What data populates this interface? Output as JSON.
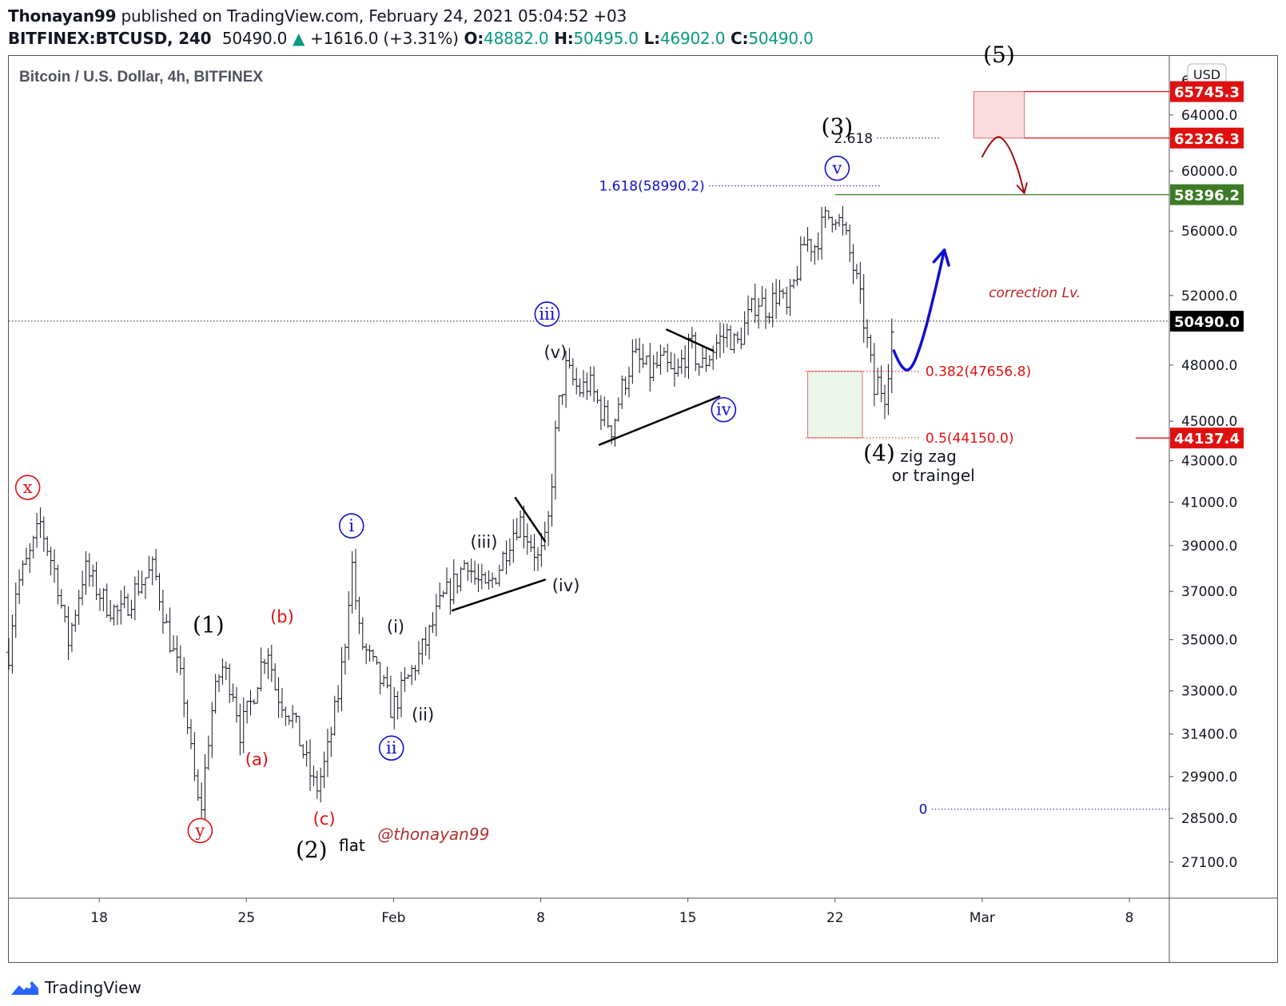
{
  "header": {
    "publisher": "Thonayan99",
    "published_text": "published on TradingView.com, February 24, 2021 05:04:52 +03",
    "symbol": "BITFINEX:BTCUSD, 240",
    "last": "50490.0",
    "change": "+1616.0 (+3.31%)",
    "o_label": "O:",
    "o_value": "48882.0",
    "h_label": "H:",
    "h_value": "50495.0",
    "l_label": "L:",
    "l_value": "46902.0",
    "c_label": "C:",
    "c_value": "50490.0"
  },
  "footer": {
    "brand": "TradingView"
  },
  "colors": {
    "up": "#089981",
    "blue": "#1010d0",
    "red": "#e01010",
    "green_label": "#3e7b27",
    "black_label": "#000000"
  },
  "chart_data": {
    "type": "ohlc",
    "title": "Bitcoin / U.S. Dollar, 4h, BITFINEX",
    "currency": "USD",
    "x_ticks": [
      "18",
      "25",
      "Feb",
      "8",
      "15",
      "22",
      "Mar",
      "8"
    ],
    "x_tick_days": [
      18,
      25,
      32,
      39,
      46,
      53,
      60,
      67
    ],
    "x_range_days": [
      13.7,
      68.9
    ],
    "y_ticks": [
      "27100.0",
      "28500.0",
      "29900.0",
      "31400.0",
      "33000.0",
      "35000.0",
      "37000.0",
      "39000.0",
      "41000.0",
      "43000.0",
      "45000.0",
      "48000.0",
      "52000.0",
      "56000.0",
      "60000.0",
      "64000.0"
    ],
    "y_top_partial": "6",
    "y_range": [
      26000,
      68500
    ],
    "y_scale": "log",
    "price_path": [
      [
        13.7,
        34500
      ],
      [
        14.0,
        37000
      ],
      [
        14.8,
        38800
      ],
      [
        15.2,
        40000
      ],
      [
        16.0,
        37500
      ],
      [
        16.5,
        34800
      ],
      [
        17.3,
        38000
      ],
      [
        18.3,
        36500
      ],
      [
        19.0,
        36000
      ],
      [
        19.8,
        37200
      ],
      [
        20.6,
        38000
      ],
      [
        21.2,
        35500
      ],
      [
        22.0,
        33000
      ],
      [
        22.4,
        30500
      ],
      [
        22.8,
        28500
      ],
      [
        23.3,
        32000
      ],
      [
        23.8,
        34000
      ],
      [
        24.4,
        33000
      ],
      [
        24.7,
        31500
      ],
      [
        25.2,
        32500
      ],
      [
        25.7,
        34000
      ],
      [
        26.0,
        34800
      ],
      [
        26.4,
        33000
      ],
      [
        27.2,
        32000
      ],
      [
        27.8,
        30500
      ],
      [
        28.3,
        29400
      ],
      [
        28.8,
        30500
      ],
      [
        29.4,
        33000
      ],
      [
        29.7,
        35000
      ],
      [
        30.0,
        38400
      ],
      [
        30.4,
        35000
      ],
      [
        31.0,
        34000
      ],
      [
        31.6,
        33000
      ],
      [
        31.9,
        32300
      ],
      [
        32.4,
        33000
      ],
      [
        32.9,
        33800
      ],
      [
        33.6,
        35000
      ],
      [
        34.3,
        36600
      ],
      [
        35.0,
        37500
      ],
      [
        35.5,
        38500
      ],
      [
        35.8,
        37600
      ],
      [
        36.4,
        37000
      ],
      [
        37.0,
        38000
      ],
      [
        37.6,
        39500
      ],
      [
        38.0,
        40200
      ],
      [
        38.6,
        39000
      ],
      [
        38.9,
        38300
      ],
      [
        39.3,
        39300
      ],
      [
        39.6,
        43000
      ],
      [
        39.8,
        45500
      ],
      [
        40.2,
        47800
      ],
      [
        40.8,
        46600
      ],
      [
        41.3,
        47000
      ],
      [
        41.9,
        45500
      ],
      [
        42.4,
        44600
      ],
      [
        42.8,
        46500
      ],
      [
        43.4,
        48500
      ],
      [
        44.2,
        47600
      ],
      [
        44.8,
        48200
      ],
      [
        45.4,
        47200
      ],
      [
        45.8,
        48500
      ],
      [
        46.2,
        49000
      ],
      [
        46.6,
        47800
      ],
      [
        47.0,
        48500
      ],
      [
        47.4,
        49300
      ],
      [
        47.9,
        49800
      ],
      [
        48.3,
        49000
      ],
      [
        48.8,
        50500
      ],
      [
        49.3,
        51800
      ],
      [
        49.8,
        51200
      ],
      [
        50.3,
        52300
      ],
      [
        50.7,
        51000
      ],
      [
        51.2,
        53500
      ],
      [
        51.6,
        55500
      ],
      [
        52.0,
        55000
      ],
      [
        52.5,
        56700
      ],
      [
        53.0,
        57300
      ],
      [
        53.5,
        55600
      ],
      [
        54.0,
        53000
      ],
      [
        54.3,
        51000
      ],
      [
        54.7,
        48000
      ],
      [
        54.9,
        46200
      ],
      [
        55.1,
        47500
      ],
      [
        55.3,
        46000
      ],
      [
        55.5,
        47600
      ],
      [
        55.7,
        49800
      ]
    ],
    "horizontal_lines": [
      {
        "name": "fib-1618",
        "label": "1.618(58990.2)",
        "price": 58990.2,
        "color": "#1010d0",
        "style": "dotted",
        "x_from": 47.0,
        "x_to": 55.2
      },
      {
        "name": "fib-2618",
        "label": "2.618",
        "price": 62326.3,
        "color": "#131722",
        "style": "dotted",
        "x_from": 55.0,
        "x_to": 58.0
      },
      {
        "name": "fib-0382",
        "label": "0.382(47656.8)",
        "price": 47656.8,
        "color": "#e01010",
        "style": "dotted",
        "x_from": 51.6,
        "x_to": 57.0
      },
      {
        "name": "fib-05",
        "label": "0.5(44150.0)",
        "price": 44150.0,
        "color": "#e01010",
        "style": "dotted",
        "x_from": 51.6,
        "x_to": 57.0
      },
      {
        "name": "fib-0",
        "label": "0",
        "price": 28800,
        "color": "#1010d0",
        "style": "dotted",
        "x_from": 57.6,
        "x_to": 68.9
      },
      {
        "name": "last-price",
        "label": "",
        "price": 50490.0,
        "color": "#131722",
        "style": "dotted",
        "x_from": 13.7,
        "x_to": 68.9
      },
      {
        "name": "level-65745",
        "label": "",
        "price": 65745.3,
        "color": "#e01010",
        "style": "solid",
        "x_from": 62.0,
        "x_to": 68.9
      },
      {
        "name": "level-62326",
        "label": "",
        "price": 62326.3,
        "color": "#e01010",
        "style": "solid",
        "x_from": 62.0,
        "x_to": 68.9
      },
      {
        "name": "level-58396",
        "label": "",
        "price": 58396.2,
        "color": "#3e7b27",
        "style": "solid",
        "x_from": 53.0,
        "x_to": 68.9
      },
      {
        "name": "level-44137",
        "label": "",
        "price": 44137.4,
        "color": "#e01010",
        "style": "solid",
        "x_from": 67.3,
        "x_to": 68.9
      }
    ],
    "price_labels": [
      {
        "text": "65745.3",
        "price": 65745.3,
        "bg": "#e01010",
        "fg": "#ffffff"
      },
      {
        "text": "62326.3",
        "price": 62326.3,
        "bg": "#e01010",
        "fg": "#ffffff"
      },
      {
        "text": "58396.2",
        "price": 58396.2,
        "bg": "#3e7b27",
        "fg": "#ffffff"
      },
      {
        "text": "50490.0",
        "price": 50490.0,
        "bg": "#000000",
        "fg": "#ffffff"
      },
      {
        "text": "44137.4",
        "price": 44137.4,
        "bg": "#e01010",
        "fg": "#ffffff"
      }
    ],
    "boxes": [
      {
        "name": "target-box-5",
        "x0": 59.6,
        "x1": 62.0,
        "p0": 65745.3,
        "p1": 62326.3,
        "fill": "rgba(240,128,128,0.28)",
        "stroke": "#e07070"
      },
      {
        "name": "support-box-4",
        "x0": 51.7,
        "x1": 54.3,
        "p0": 47656.8,
        "p1": 44150.0,
        "fill": "rgba(120,200,120,0.15)",
        "stroke": "#e07070"
      }
    ],
    "trendlines": [
      {
        "name": "triangle-iv-upper",
        "x0": 37.8,
        "y0": 41200,
        "x1": 39.2,
        "y1": 39200,
        "color": "#000",
        "width": 2.5
      },
      {
        "name": "triangle-iv-lower",
        "x0": 34.8,
        "y0": 36200,
        "x1": 39.2,
        "y1": 37500,
        "color": "#000",
        "width": 2.5
      },
      {
        "name": "triangle-iv-big-upper",
        "x0": 45.0,
        "y0": 50000,
        "x1": 47.2,
        "y1": 48800,
        "color": "#000",
        "width": 2.5
      },
      {
        "name": "triangle-iv-big-lower",
        "x0": 41.8,
        "y0": 43800,
        "x1": 47.5,
        "y1": 46300,
        "color": "#000",
        "width": 2.5
      }
    ],
    "annotations": [
      {
        "text": "(1)",
        "x": 23.2,
        "y": 35300,
        "color": "#000",
        "size": 28
      },
      {
        "text": "(2)",
        "x": 28.1,
        "y": 27250,
        "color": "#000",
        "size": 28
      },
      {
        "text": "flat",
        "x": 29.4,
        "y": 27450,
        "color": "#000",
        "size": 20,
        "anchor": "start"
      },
      {
        "text": "(3)",
        "x": 53.1,
        "y": 62600,
        "color": "#000",
        "size": 28
      },
      {
        "text": "(4)",
        "x": 55.1,
        "y": 43000,
        "color": "#000",
        "size": 28
      },
      {
        "text": "(5)",
        "x": 60.8,
        "y": 68000,
        "color": "#000",
        "size": 28
      },
      {
        "text": "zig zag",
        "x": 56.1,
        "y": 42950,
        "color": "#131722",
        "size": 20,
        "anchor": "start"
      },
      {
        "text": "or traingel",
        "x": 55.7,
        "y": 42000,
        "color": "#131722",
        "size": 20,
        "anchor": "start"
      },
      {
        "text": "(a)",
        "x": 25.5,
        "y": 30300,
        "color": "#e01010",
        "size": 21
      },
      {
        "text": "(b)",
        "x": 26.7,
        "y": 35700,
        "color": "#e01010",
        "size": 21
      },
      {
        "text": "(c)",
        "x": 28.7,
        "y": 28300,
        "color": "#e01010",
        "size": 21
      },
      {
        "text": "(i)",
        "x": 32.1,
        "y": 35300,
        "color": "#131722",
        "size": 21
      },
      {
        "text": "(ii)",
        "x": 33.4,
        "y": 31900,
        "color": "#131722",
        "size": 21
      },
      {
        "text": "(iii)",
        "x": 36.3,
        "y": 38900,
        "color": "#131722",
        "size": 21
      },
      {
        "text": "(iv)",
        "x": 40.2,
        "y": 37000,
        "color": "#131722",
        "size": 21
      },
      {
        "text": "(v)",
        "x": 39.7,
        "y": 48400,
        "color": "#131722",
        "size": 21
      },
      {
        "text": "correction Lv.",
        "x": 62.5,
        "y": 51900,
        "color": "#c02020",
        "size": 17,
        "italic": true
      },
      {
        "text": "@thonayan99",
        "x": 33.9,
        "y": 27800,
        "color": "#b03030",
        "size": 20,
        "italic": true
      }
    ],
    "circle_labels": [
      {
        "text": "x",
        "x": 14.6,
        "y": 41700,
        "color": "#e01010"
      },
      {
        "text": "y",
        "x": 22.8,
        "y": 28100,
        "color": "#e01010"
      },
      {
        "text": "i",
        "x": 30.0,
        "y": 39900,
        "color": "#1010d0"
      },
      {
        "text": "ii",
        "x": 31.9,
        "y": 30900,
        "color": "#1010d0"
      },
      {
        "text": "iii",
        "x": 39.3,
        "y": 50900,
        "color": "#1010d0"
      },
      {
        "text": "iv",
        "x": 47.7,
        "y": 45600,
        "color": "#1010d0"
      },
      {
        "text": "v",
        "x": 53.1,
        "y": 60200,
        "color": "#1010d0"
      }
    ],
    "projection_curves": [
      {
        "name": "projected-path-blue",
        "color": "#1010d0",
        "width": 3.5,
        "points": [
          [
            55.8,
            48800
          ],
          [
            56.1,
            47900
          ],
          [
            56.6,
            47600
          ],
          [
            57.2,
            49500
          ],
          [
            57.8,
            52500
          ],
          [
            58.2,
            54800
          ]
        ],
        "arrow_to": [
          58.5,
          54300
        ]
      },
      {
        "name": "projected-path-red",
        "color": "#a01010",
        "width": 2,
        "points": [
          [
            60.0,
            61000
          ],
          [
            60.6,
            62700
          ],
          [
            61.2,
            62000
          ],
          [
            61.7,
            60200
          ],
          [
            62.0,
            58500
          ]
        ],
        "arrow_to": [
          62.0,
          58500
        ]
      }
    ]
  }
}
